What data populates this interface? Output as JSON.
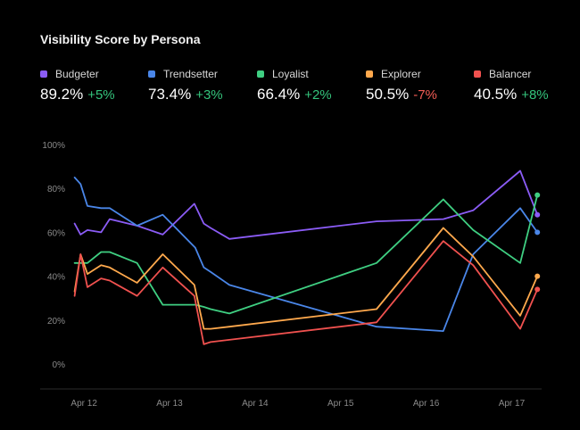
{
  "chart_data": {
    "type": "line",
    "title": "Visibility Score by Persona",
    "xlabel": "",
    "ylabel": "",
    "ylim": [
      0,
      100
    ],
    "yticks": [
      0,
      20,
      40,
      60,
      80,
      100
    ],
    "ytick_labels": [
      "0%",
      "20%",
      "40%",
      "60%",
      "80%",
      "100%"
    ],
    "xlim": [
      11.8,
      17.35
    ],
    "xticks": [
      12,
      13,
      14,
      15,
      16,
      17
    ],
    "xtick_labels": [
      "Apr 12",
      "Apr 13",
      "Apr 14",
      "Apr 15",
      "Apr 16",
      "Apr 17"
    ],
    "grid": false,
    "legend": "top",
    "series": [
      {
        "name": "Budgeter",
        "color": "#8b5cf6",
        "value_label": "89.2%",
        "change_label": "+5%",
        "change_color": "#34c47c",
        "x": [
          11.89,
          11.96,
          12.04,
          12.2,
          12.3,
          12.62,
          12.92,
          13.29,
          13.4,
          13.48,
          13.7,
          15.42,
          16.2,
          16.55,
          17.1,
          17.3
        ],
        "y": [
          64,
          59,
          61,
          60,
          66,
          63,
          59,
          73,
          64,
          62,
          57,
          65,
          66,
          70,
          88,
          68
        ]
      },
      {
        "name": "Trendsetter",
        "color": "#4a86e8",
        "value_label": "73.4%",
        "change_label": "+3%",
        "change_color": "#34c47c",
        "x": [
          11.89,
          11.96,
          12.04,
          12.2,
          12.3,
          12.62,
          12.92,
          13.3,
          13.4,
          13.48,
          13.7,
          15.42,
          16.2,
          16.55,
          17.1,
          17.3
        ],
        "y": [
          85,
          82,
          72,
          71,
          71,
          63,
          68,
          53,
          44,
          42,
          36,
          17,
          15,
          50,
          71,
          60
        ]
      },
      {
        "name": "Loyalist",
        "color": "#3fcf82",
        "value_label": "66.4%",
        "change_label": "+2%",
        "change_color": "#34c47c",
        "x": [
          11.89,
          11.96,
          12.04,
          12.2,
          12.3,
          12.62,
          12.92,
          13.3,
          13.4,
          13.48,
          13.7,
          15.42,
          16.2,
          16.55,
          17.1,
          17.3
        ],
        "y": [
          46,
          46,
          46,
          51,
          51,
          46,
          27,
          27,
          26,
          25,
          23,
          46,
          75,
          61,
          46,
          77
        ]
      },
      {
        "name": "Explorer",
        "color": "#ffa94d",
        "value_label": "50.5%",
        "change_label": "-7%",
        "change_color": "#f25c54",
        "x": [
          11.89,
          11.96,
          12.04,
          12.2,
          12.3,
          12.62,
          12.92,
          13.29,
          13.4,
          13.48,
          13.7,
          15.42,
          16.2,
          16.55,
          17.1,
          17.3
        ],
        "y": [
          33,
          50,
          41,
          45,
          44,
          37,
          50,
          36,
          16,
          16,
          17,
          25,
          62,
          49,
          22,
          40
        ]
      },
      {
        "name": "Balancer",
        "color": "#f0514f",
        "value_label": "40.5%",
        "change_label": "+8%",
        "change_color": "#34c47c",
        "x": [
          11.89,
          11.96,
          12.04,
          12.2,
          12.3,
          12.62,
          12.92,
          13.29,
          13.4,
          13.48,
          13.7,
          15.42,
          16.2,
          16.55,
          17.1,
          17.3
        ],
        "y": [
          31,
          50,
          35,
          39,
          38,
          31,
          44,
          31,
          9,
          10,
          11,
          19,
          56,
          45,
          16,
          34
        ]
      }
    ]
  }
}
